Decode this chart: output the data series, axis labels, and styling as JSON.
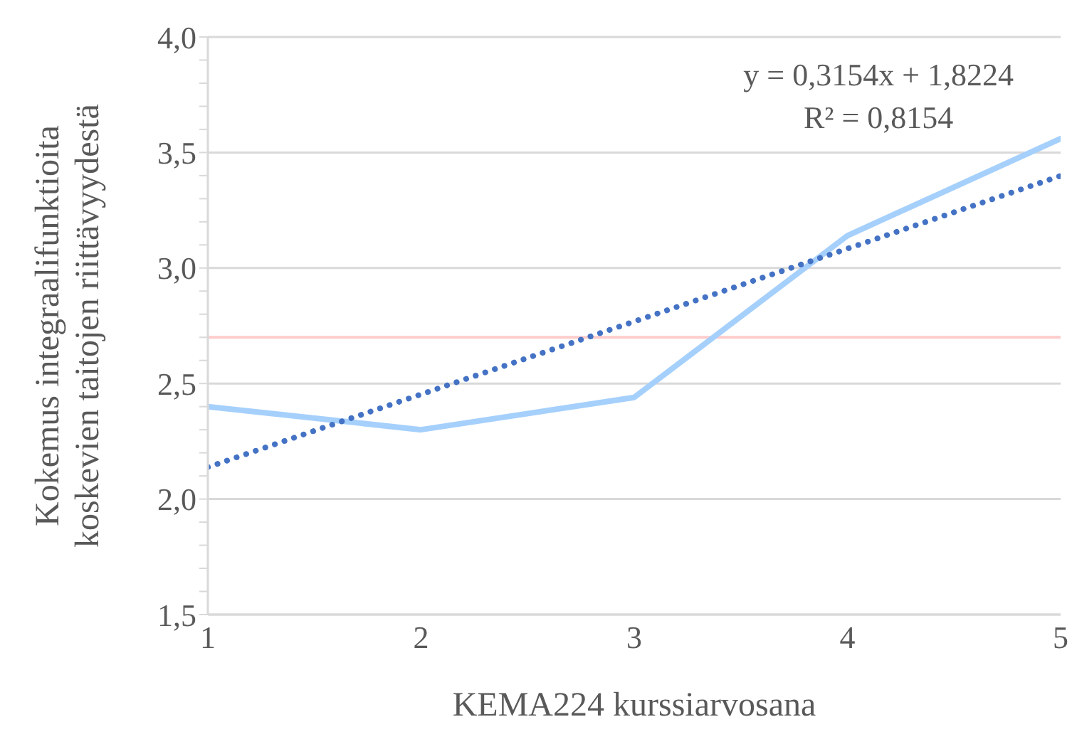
{
  "chart_data": {
    "type": "line",
    "xlabel": "KEMA224 kurssiarvosana",
    "ylabel": "Kokemus integraalifunktioita koskevien taitojen riittävyydestä",
    "x": [
      1,
      2,
      3,
      4,
      5
    ],
    "series": [
      {
        "color": "#a6d0fc",
        "values": [
          2.4,
          2.3,
          2.44,
          3.14,
          3.56
        ],
        "line_style": "solid"
      },
      {
        "color": "#4472c4",
        "x": [
          1,
          5
        ],
        "values": [
          2.138,
          3.399
        ],
        "line_style": "dotted"
      }
    ],
    "xlim": [
      1,
      5
    ],
    "xticks": [
      1,
      2,
      3,
      4,
      5
    ],
    "ylim": [
      1.5,
      4
    ],
    "yticks": [
      {
        "value": 1.5,
        "label": "1,5"
      },
      {
        "value": 1.6,
        "label": null
      },
      {
        "value": 1.7,
        "label": null
      },
      {
        "value": 1.8,
        "label": null
      },
      {
        "value": 1.9,
        "label": null
      },
      {
        "value": 2,
        "label": "2,0"
      },
      {
        "value": 2.1,
        "label": null
      },
      {
        "value": 2.2,
        "label": null
      },
      {
        "value": 2.3,
        "label": null
      },
      {
        "value": 2.4,
        "label": null
      },
      {
        "value": 2.5,
        "label": "2,5"
      },
      {
        "value": 2.6,
        "label": null
      },
      {
        "value": 2.7,
        "label": null
      },
      {
        "value": 2.8,
        "label": null
      },
      {
        "value": 2.9,
        "label": null
      },
      {
        "value": 3,
        "label": "3,0"
      },
      {
        "value": 3.1,
        "label": null
      },
      {
        "value": 3.2,
        "label": null
      },
      {
        "value": 3.3,
        "label": null
      },
      {
        "value": 3.4,
        "label": null
      },
      {
        "value": 3.5,
        "label": "3,5"
      },
      {
        "value": 3.6,
        "label": null
      },
      {
        "value": 3.7,
        "label": null
      },
      {
        "value": 3.8,
        "label": null
      },
      {
        "value": 3.9,
        "label": null
      },
      {
        "value": 4,
        "label": "4,0"
      }
    ],
    "ref_lines": [
      {
        "axis": "y",
        "value": 2.7,
        "color": "#ffcccc"
      }
    ],
    "annotations": [
      "y = 0,3154x + 1,8224",
      "R² = 0,8154"
    ],
    "grid": "y",
    "marker": "none",
    "legend": false
  }
}
